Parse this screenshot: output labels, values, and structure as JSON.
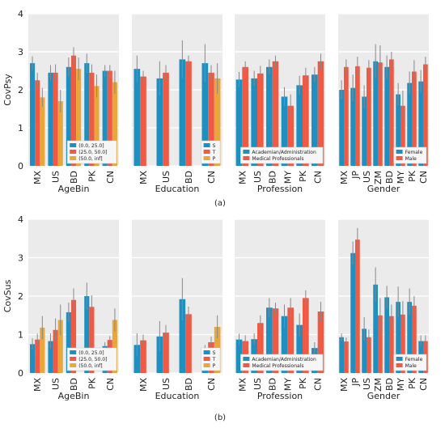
{
  "colors": {
    "c1": "#1f8fc0",
    "c2": "#f05a45",
    "c3": "#e8a73a",
    "err": "#888888",
    "panel_bg": "#ebebeb",
    "grid": "#ffffff"
  },
  "chart_data": [
    {
      "type": "bar",
      "caption": "(a)",
      "ylabel": "CovPsy",
      "ylim": [
        0,
        4
      ],
      "yticks": [
        0,
        1,
        2,
        3,
        4
      ],
      "grid": true,
      "panels": [
        {
          "name": "AgeBin",
          "categories": [
            "MX",
            "US",
            "BD",
            "PK",
            "CN"
          ],
          "legend": {
            "placement": "bottom-right",
            "labels": [
              "(0.0, 25.0]",
              "(25.0, 50.0]",
              "(50.0, inf]"
            ]
          },
          "series": [
            {
              "name": "(0.0, 25.0]",
              "values": [
                2.7,
                2.45,
                2.6,
                2.7,
                2.5
              ],
              "errors": [
                0.18,
                0.2,
                0.25,
                0.25,
                0.15
              ]
            },
            {
              "name": "(25.0, 50.0]",
              "values": [
                2.25,
                2.45,
                2.9,
                2.45,
                2.5
              ],
              "errors": [
                0.2,
                0.22,
                0.22,
                0.22,
                0.15
              ]
            },
            {
              "name": "(50.0, inf]",
              "values": [
                1.8,
                1.7,
                2.55,
                2.1,
                2.2
              ],
              "errors": [
                0.25,
                0.3,
                0.3,
                0.3,
                0.3
              ]
            }
          ]
        },
        {
          "name": "Education",
          "categories": [
            "MX",
            "US",
            "BD",
            "CN"
          ],
          "legend": {
            "placement": "bottom-right",
            "labels": [
              "S",
              "T",
              "P"
            ]
          },
          "series": [
            {
              "name": "S",
              "values": [
                2.55,
                2.3,
                2.8,
                2.7
              ],
              "errors": [
                0.35,
                0.45,
                0.5,
                0.5
              ]
            },
            {
              "name": "T",
              "values": [
                2.35,
                2.45,
                2.75,
                2.45
              ],
              "errors": [
                0.15,
                0.2,
                0.15,
                0.2
              ]
            },
            {
              "name": "P",
              "values": [
                null,
                null,
                null,
                2.3
              ],
              "errors": [
                null,
                null,
                null,
                0.4
              ]
            }
          ]
        },
        {
          "name": "Profession",
          "categories": [
            "MX",
            "US",
            "BD",
            "MY",
            "PK",
            "CN"
          ],
          "legend": {
            "placement": "bottom-right",
            "labels": [
              "Academian/Administration",
              "Medical Professionals"
            ]
          },
          "series": [
            {
              "name": "Academian/Administration",
              "values": [
                2.27,
                2.3,
                2.6,
                1.82,
                2.12,
                2.4
              ],
              "errors": [
                0.2,
                0.2,
                0.2,
                0.25,
                0.25,
                0.2
              ]
            },
            {
              "name": "Medical Professionals",
              "values": [
                2.6,
                2.43,
                2.75,
                1.58,
                2.38,
                2.75
              ],
              "errors": [
                0.15,
                0.2,
                0.15,
                0.3,
                0.2,
                0.2
              ]
            }
          ]
        },
        {
          "name": "Gender",
          "categories": [
            "MX",
            "JP",
            "US",
            "ZM",
            "BD",
            "MY",
            "PK",
            "CN"
          ],
          "legend": {
            "placement": "bottom-right",
            "labels": [
              "Female",
              "Male"
            ]
          },
          "series": [
            {
              "name": "Female",
              "values": [
                2.0,
                2.05,
                1.82,
                2.75,
                2.6,
                1.88,
                2.18,
                2.22
              ],
              "errors": [
                0.25,
                0.35,
                0.3,
                0.45,
                0.3,
                0.3,
                0.3,
                0.3
              ]
            },
            {
              "name": "Male",
              "values": [
                2.6,
                2.62,
                2.58,
                2.72,
                2.8,
                1.58,
                2.48,
                2.67
              ],
              "errors": [
                0.2,
                0.25,
                0.2,
                0.45,
                0.2,
                0.4,
                0.3,
                0.2
              ]
            }
          ]
        }
      ]
    },
    {
      "type": "bar",
      "caption": "(b)",
      "ylabel": "CovSus",
      "ylim": [
        0,
        4
      ],
      "yticks": [
        0,
        1,
        2,
        3,
        4
      ],
      "grid": true,
      "panels": [
        {
          "name": "AgeBin",
          "categories": [
            "MX",
            "US",
            "BD",
            "PK",
            "CN"
          ],
          "legend": {
            "placement": "bottom-right",
            "labels": [
              "(0.0, 25.0]",
              "(25.0, 50.0]",
              "(50.0, inf]"
            ]
          },
          "series": [
            {
              "name": "(0.0, 25.0]",
              "values": [
                0.75,
                0.83,
                1.58,
                2.0,
                0.7
              ],
              "errors": [
                0.15,
                0.2,
                0.25,
                0.35,
                0.1
              ]
            },
            {
              "name": "(25.0, 50.0]",
              "values": [
                0.87,
                1.12,
                1.9,
                1.72,
                0.86
              ],
              "errors": [
                0.15,
                0.3,
                0.3,
                0.3,
                0.1
              ]
            },
            {
              "name": "(50.0, inf]",
              "values": [
                1.18,
                1.38,
                null,
                null,
                1.38
              ],
              "errors": [
                0.3,
                0.4,
                null,
                null,
                0.3
              ]
            }
          ]
        },
        {
          "name": "Education",
          "categories": [
            "MX",
            "US",
            "BD",
            "CN"
          ],
          "legend": {
            "placement": "bottom-right",
            "labels": [
              "S",
              "T",
              "P"
            ]
          },
          "series": [
            {
              "name": "S",
              "values": [
                0.73,
                0.95,
                1.92,
                0.58
              ],
              "errors": [
                0.3,
                0.4,
                0.55,
                0.15
              ]
            },
            {
              "name": "T",
              "values": [
                0.85,
                1.05,
                1.53,
                0.8
              ],
              "errors": [
                0.15,
                0.2,
                0.2,
                0.15
              ]
            },
            {
              "name": "P",
              "values": [
                null,
                null,
                null,
                1.2
              ],
              "errors": [
                null,
                null,
                null,
                0.3
              ]
            }
          ]
        },
        {
          "name": "Profession",
          "categories": [
            "MX",
            "US",
            "BD",
            "MY",
            "PK",
            "CN"
          ],
          "legend": {
            "placement": "bottom-right",
            "labels": [
              "Academian/Administration",
              "Medical Professionals"
            ]
          },
          "series": [
            {
              "name": "Academian/Administration",
              "values": [
                0.87,
                0.88,
                1.7,
                1.48,
                1.25,
                0.65
              ],
              "errors": [
                0.15,
                0.15,
                0.25,
                0.3,
                0.3,
                0.15
              ]
            },
            {
              "name": "Medical Professionals",
              "values": [
                0.83,
                1.3,
                1.68,
                1.7,
                1.95,
                1.6
              ],
              "errors": [
                0.15,
                0.2,
                0.15,
                0.25,
                0.2,
                0.25
              ]
            }
          ]
        },
        {
          "name": "Gender",
          "categories": [
            "MX",
            "JP",
            "US",
            "ZM",
            "BD",
            "MY",
            "PK",
            "CN"
          ],
          "legend": {
            "placement": "bottom-right",
            "labels": [
              "Female",
              "Male"
            ]
          },
          "series": [
            {
              "name": "Female",
              "values": [
                0.93,
                3.12,
                1.15,
                2.3,
                1.97,
                1.85,
                1.85,
                0.83
              ],
              "errors": [
                0.1,
                0.3,
                0.3,
                0.45,
                0.3,
                0.4,
                0.35,
                0.15
              ]
            },
            {
              "name": "Male",
              "values": [
                0.82,
                3.47,
                0.93,
                1.5,
                1.48,
                1.52,
                1.75,
                0.83
              ],
              "errors": [
                0.1,
                0.3,
                0.2,
                0.45,
                0.3,
                0.35,
                0.25,
                0.15
              ]
            }
          ]
        }
      ]
    }
  ]
}
